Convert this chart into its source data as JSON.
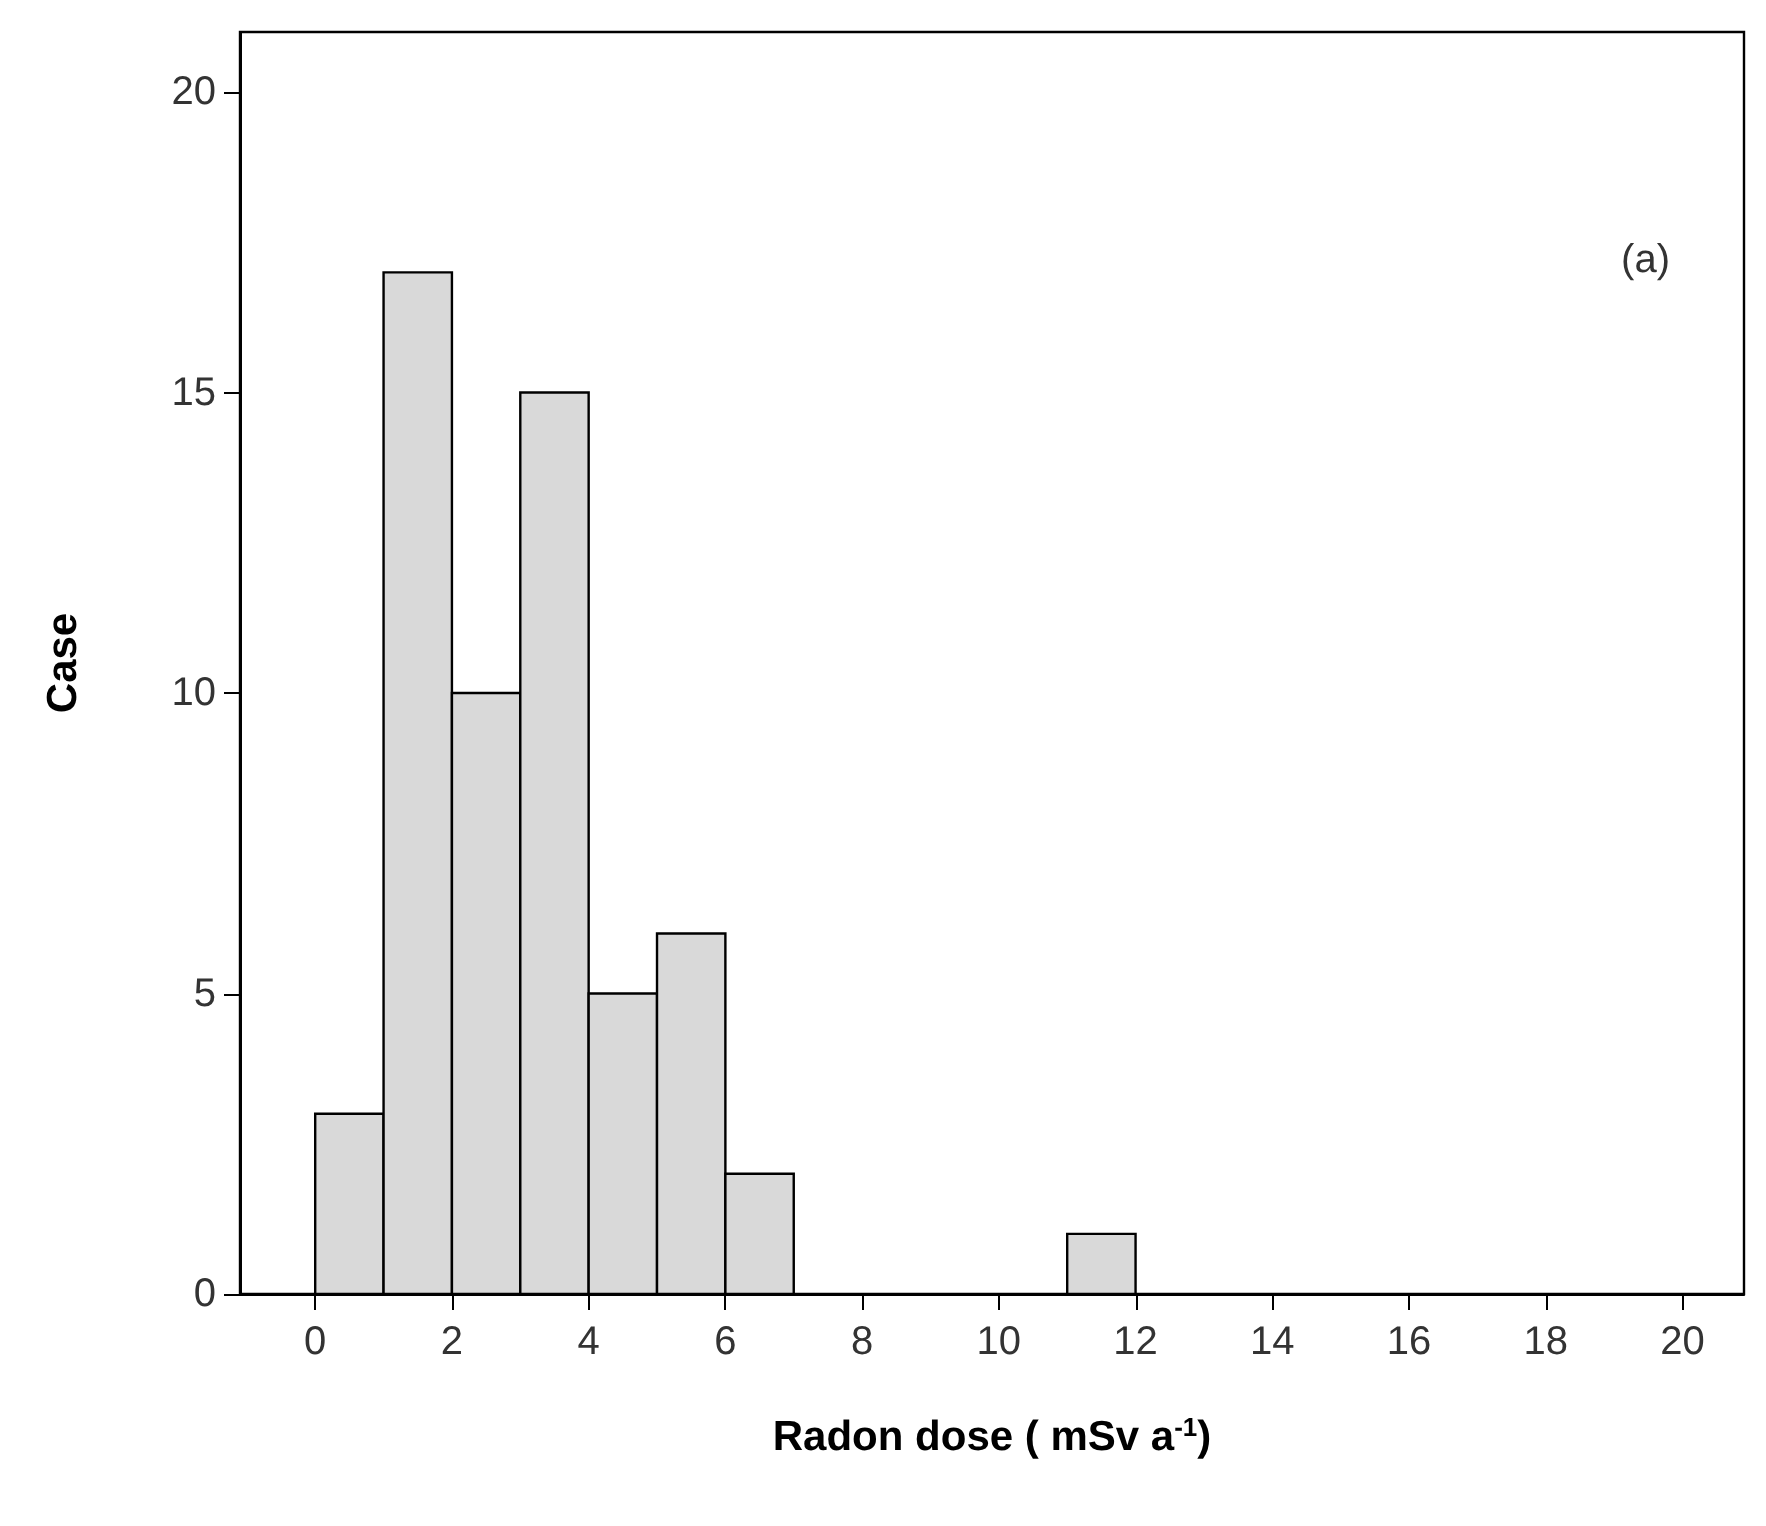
{
  "chart_data": {
    "type": "histogram",
    "xlabel": "Radon dose ( mSv a$^{-1}$)",
    "ylabel": "Case",
    "annotations": [
      "(a)"
    ],
    "bins": [
      0,
      1,
      2,
      3,
      4,
      5,
      6,
      7,
      8,
      9,
      10,
      11,
      12
    ],
    "values": [
      3,
      17,
      10,
      15,
      5,
      6,
      2,
      0,
      0,
      0,
      0,
      1
    ],
    "color": "#d9d9d9",
    "xlim": [
      -1.1,
      20.9
    ],
    "xticks": [
      0,
      2,
      4,
      6,
      8,
      10,
      12,
      14,
      16,
      18,
      20
    ],
    "ylim": [
      0,
      21
    ],
    "yticks": [
      0,
      5,
      10,
      15,
      20
    ],
    "grid": false
  }
}
